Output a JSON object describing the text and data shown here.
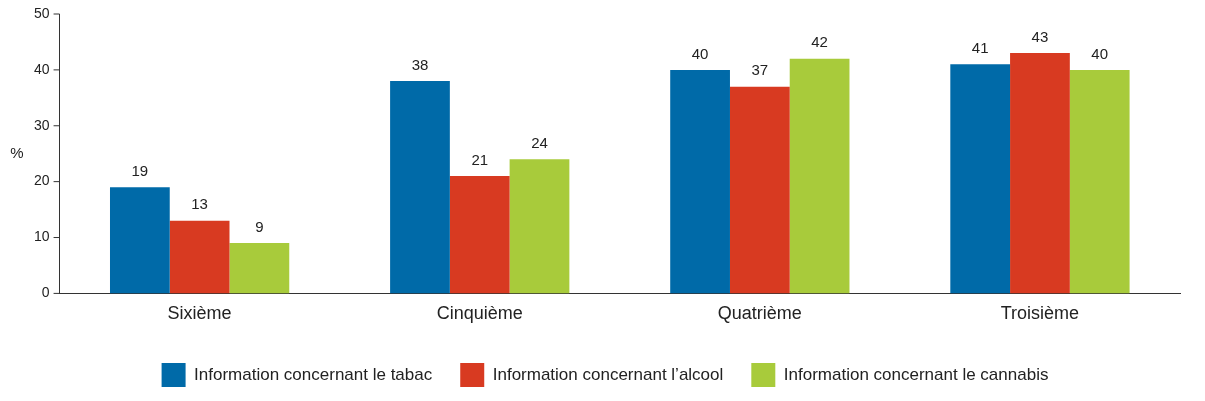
{
  "chart_data": {
    "type": "bar",
    "ylabel": "%",
    "categories": [
      "Sixième",
      "Cinquième",
      "Quatrième",
      "Troisième"
    ],
    "series": [
      {
        "name": "Information concernant le tabac",
        "color": "#006aa8",
        "values": [
          19,
          38,
          40,
          41
        ]
      },
      {
        "name": "Information concernant l’alcool",
        "color": "#d83a21",
        "values": [
          13,
          21,
          37,
          43
        ]
      },
      {
        "name": "Information concernant le cannabis",
        "color": "#a8cb3b",
        "values": [
          9,
          24,
          42,
          40
        ]
      }
    ],
    "ylim": [
      0,
      50
    ],
    "yticks": [
      0,
      10,
      20,
      30,
      40,
      50
    ],
    "grid": false,
    "legend": "bottom",
    "data_labels": true
  }
}
